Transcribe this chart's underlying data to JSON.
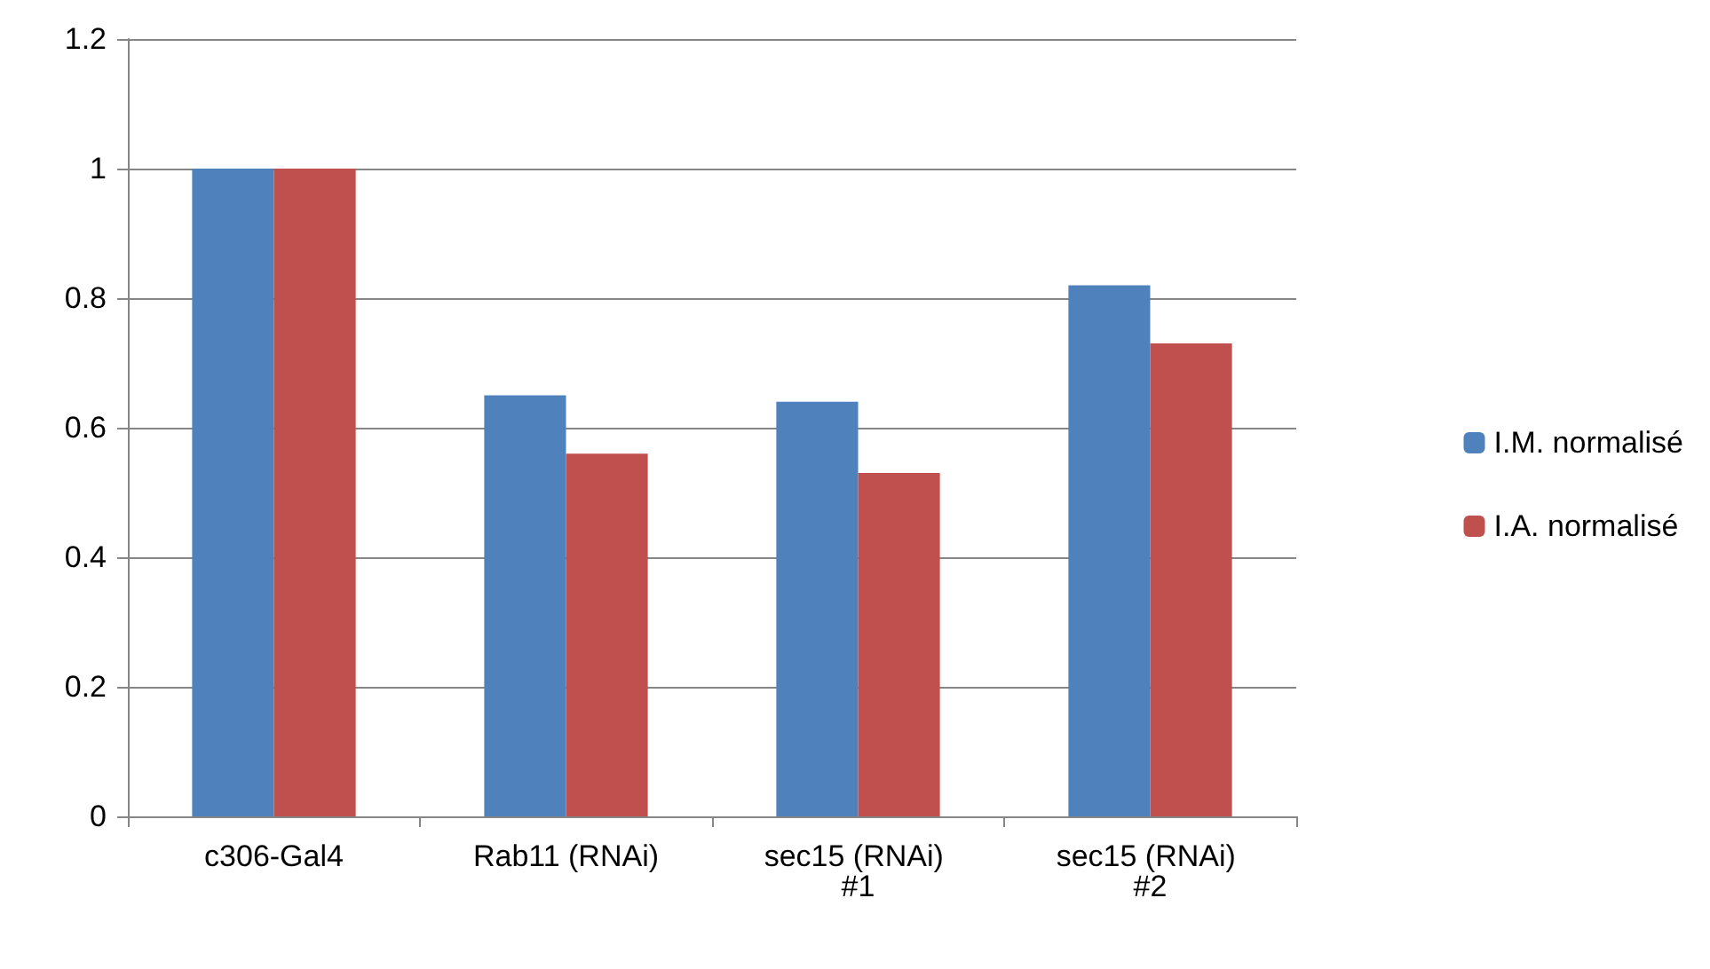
{
  "chart_data": {
    "type": "bar",
    "categories": [
      "c306-Gal4",
      "Rab11 (RNAi)",
      "sec15 (RNAi) #1",
      "sec15 (RNAi) #2"
    ],
    "series": [
      {
        "name": "I.M. normalisé",
        "color": "#4f81bd",
        "values": [
          1,
          0.65,
          0.64,
          0.82
        ]
      },
      {
        "name": "I.A. normalisé",
        "color": "#c0504d",
        "values": [
          1,
          0.56,
          0.53,
          0.73
        ]
      }
    ],
    "ylim": [
      0,
      1.2
    ],
    "yticks": [
      0,
      0.2,
      0.4,
      0.6,
      0.8,
      1,
      1.2
    ],
    "grid": "y",
    "legend": "right"
  }
}
